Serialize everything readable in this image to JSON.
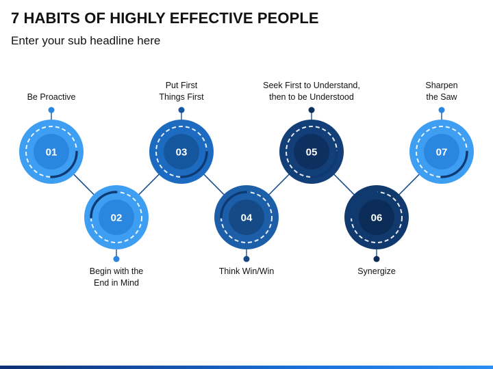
{
  "title": "7 HABITS OF HIGHLY EFFECTIVE PEOPLE",
  "subtitle": "Enter your sub headline here",
  "steps": [
    {
      "number": "01",
      "lines": [
        "Be Proactive"
      ],
      "position": "top",
      "color": "#3d9ef2",
      "inner": "#2b86df"
    },
    {
      "number": "02",
      "lines": [
        "Begin with the",
        "End in Mind"
      ],
      "position": "bottom",
      "color": "#3d9ef2",
      "inner": "#2b86df"
    },
    {
      "number": "03",
      "lines": [
        "Put First",
        "Things First"
      ],
      "position": "top",
      "color": "#1d6bc0",
      "inner": "#15579f"
    },
    {
      "number": "04",
      "lines": [
        "Think Win/Win"
      ],
      "position": "bottom",
      "color": "#1d5ea8",
      "inner": "#154a86"
    },
    {
      "number": "05",
      "lines": [
        "Seek First to Understand,",
        "then to be Understood"
      ],
      "position": "top",
      "color": "#123f78",
      "inner": "#0d3060"
    },
    {
      "number": "06",
      "lines": [
        "Synergize"
      ],
      "position": "bottom",
      "color": "#103a6e",
      "inner": "#0b2c57"
    },
    {
      "number": "07",
      "lines": [
        "Sharpen",
        "the Saw"
      ],
      "position": "top",
      "color": "#3d9ef2",
      "inner": "#2b86df"
    }
  ]
}
